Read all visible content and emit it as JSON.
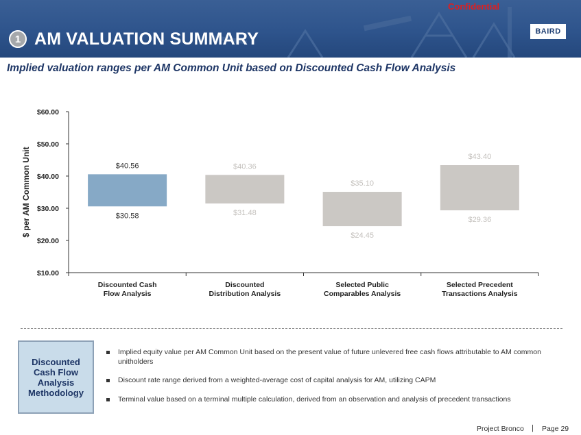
{
  "header": {
    "confidential": "Confidential",
    "section_number": "1",
    "title": "AM VALUATION SUMMARY",
    "logo_text": "BAIRD"
  },
  "subtitle": "Implied valuation ranges per AM Common Unit based on Discounted Cash Flow Analysis",
  "chart_data": {
    "type": "bar",
    "ylabel": "$ per AM Common Unit",
    "ylim": [
      10,
      60
    ],
    "yticks": [
      "$10.00",
      "$20.00",
      "$30.00",
      "$40.00",
      "$50.00",
      "$60.00"
    ],
    "ytick_values": [
      10,
      20,
      30,
      40,
      50,
      60
    ],
    "categories": [
      "Discounted Cash|Flow Analysis",
      "Discounted|Distribution Analysis",
      "Selected Public|Comparables Analysis",
      "Selected Precedent|Transactions Analysis"
    ],
    "series": [
      {
        "low": 30.58,
        "high": 40.56,
        "low_label": "$30.58",
        "high_label": "$40.56",
        "color": "#86a9c6",
        "label_color": "#333333"
      },
      {
        "low": 31.48,
        "high": 40.36,
        "low_label": "$31.48",
        "high_label": "$40.36",
        "color": "#cbc8c4",
        "label_color": "#c4c1bd"
      },
      {
        "low": 24.45,
        "high": 35.1,
        "low_label": "$24.45",
        "high_label": "$35.10",
        "color": "#cbc8c4",
        "label_color": "#c4c1bd"
      },
      {
        "low": 29.36,
        "high": 43.4,
        "low_label": "$29.36",
        "high_label": "$43.40",
        "color": "#cbc8c4",
        "label_color": "#c4c1bd"
      }
    ]
  },
  "methodology": {
    "box_label": "Discounted Cash Flow Analysis Methodology",
    "bullets": [
      "Implied equity value per AM Common Unit based on the present value of future unlevered free cash flows attributable to AM common unitholders",
      "Discount rate range derived from a weighted-average cost of capital analysis for AM, utilizing CAPM",
      "Terminal value based on a terminal multiple calculation, derived from an observation and analysis of precedent transactions"
    ]
  },
  "footer": {
    "project": "Project Bronco",
    "separator": "|",
    "page": "Page 29"
  },
  "colors": {
    "header_blue": "#2e548c",
    "title_navy": "#1d3565",
    "highlight_bar": "#86a9c6",
    "gray_bar": "#cbc8c4",
    "confidential_red": "#e01e1e"
  }
}
